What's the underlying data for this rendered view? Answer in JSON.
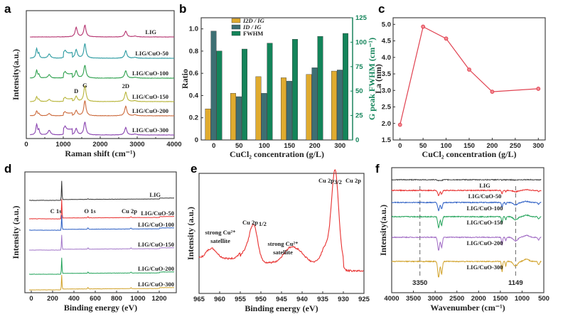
{
  "chart_data": [
    {
      "panel": "a",
      "type": "line",
      "xlabel": "Raman shift (cm⁻¹)",
      "ylabel": "Intensity(a.u.)",
      "xlim": [
        0,
        4000
      ],
      "xticks": [
        "0",
        "1000",
        "2000",
        "3000",
        "4000"
      ],
      "series": [
        {
          "name": "LIG",
          "color": "#b5336f",
          "peaks": [
            [
              1350,
              0.9
            ],
            [
              1585,
              1.1
            ],
            [
              2690,
              0.55
            ]
          ],
          "cuo": 0
        },
        {
          "name": "LIG/CuO-50",
          "color": "#2a9aa0",
          "peaks": [
            [
              1350,
              0.8
            ],
            [
              1585,
              1.35
            ],
            [
              2690,
              0.7
            ]
          ],
          "cuo": 1
        },
        {
          "name": "LIG/CuO-100",
          "color": "#2fa14f",
          "peaks": [
            [
              1350,
              0.7
            ],
            [
              1585,
              1.2
            ],
            [
              2690,
              0.7
            ]
          ],
          "cuo": 0.8
        },
        {
          "name": "LIG/CuO-150",
          "color": "#b8b53a",
          "peaks": [
            [
              1350,
              0.5
            ],
            [
              1585,
              1.5
            ],
            [
              2690,
              0.9
            ]
          ],
          "cuo": 0.5
        },
        {
          "name": "LIG/CuO-200",
          "color": "#cc6a3c",
          "peaks": [
            [
              1350,
              0.5
            ],
            [
              1585,
              1.4
            ],
            [
              2690,
              0.9
            ]
          ],
          "cuo": 0.5
        },
        {
          "name": "LIG/CuO-300",
          "color": "#8a44b0",
          "peaks": [
            [
              1350,
              0.6
            ],
            [
              1585,
              1.2
            ],
            [
              2690,
              0.7
            ]
          ],
          "cuo": 1.1
        }
      ],
      "annotations": [
        "D",
        "G",
        "2D"
      ]
    },
    {
      "panel": "b",
      "type": "bar",
      "xlabel": "CuCl₂ concentration (g/L)",
      "ylabel": "Ratio",
      "ylabel_right": "G peak FWHM (cm⁻¹)",
      "categories": [
        "0",
        "50",
        "100",
        "150",
        "200",
        "300"
      ],
      "ylim": [
        0,
        1.1
      ],
      "yticks": [
        "0",
        "0.2",
        "0.4",
        "0.6",
        "0.8",
        "1.0"
      ],
      "ylim_right": [
        0,
        125
      ],
      "yticks_right": [
        "0",
        "25",
        "50",
        "75",
        "100",
        "125"
      ],
      "series": [
        {
          "name": "I2D / IG",
          "color": "#e0ab2f",
          "axis": "left",
          "values": [
            0.28,
            0.42,
            0.57,
            0.56,
            0.59,
            0.62
          ]
        },
        {
          "name": "ID / IG",
          "color": "#3d6f73",
          "axis": "left",
          "values": [
            0.98,
            0.39,
            0.42,
            0.53,
            0.65,
            0.63
          ]
        },
        {
          "name": "FWHM",
          "color": "#13845a",
          "axis": "right",
          "values": [
            91,
            93,
            99,
            103,
            106,
            109
          ]
        }
      ],
      "legend_position": "top-left"
    },
    {
      "panel": "c",
      "type": "line",
      "xlabel": "CuCl₂ concentration (g/L)",
      "ylabel": "La (nm)",
      "x": [
        0,
        50,
        100,
        150,
        200,
        300
      ],
      "values": [
        1.96,
        4.93,
        4.57,
        3.63,
        2.96,
        3.05
      ],
      "xlim": [
        -15,
        315
      ],
      "xticks": [
        "0",
        "50",
        "100",
        "150",
        "200",
        "250",
        "300"
      ],
      "ylim": [
        1.5,
        5.2
      ],
      "yticks": [
        "1.5",
        "2.0",
        "2.5",
        "3.0",
        "3.5",
        "4.0",
        "4.5",
        "5.0"
      ],
      "color": "#e0404f"
    },
    {
      "panel": "d",
      "type": "line",
      "xlabel": "Binding energy (eV)",
      "ylabel": "Intensity (a.u.)",
      "xlim": [
        -60,
        1360
      ],
      "xticks": [
        "0",
        "200",
        "400",
        "600",
        "800",
        "1000",
        "1200"
      ],
      "series": [
        {
          "name": "LIG",
          "color": "#333333"
        },
        {
          "name": "LIG/CuO-50",
          "color": "#e8302f"
        },
        {
          "name": "LIG/CuO-100",
          "color": "#2d5fc4"
        },
        {
          "name": "LIG/CuO-150",
          "color": "#a377c9"
        },
        {
          "name": "LIG/CuO-200",
          "color": "#23a35a"
        },
        {
          "name": "LIG/CuO-300",
          "color": "#d1a22a"
        }
      ],
      "annotations": [
        "C 1s",
        "O 1s",
        "Cu 2p"
      ]
    },
    {
      "panel": "e",
      "type": "line",
      "xlabel": "Binding energy (eV)",
      "ylabel": "Intensity (a.u.)",
      "xlim": [
        965,
        925
      ],
      "xticks": [
        "965",
        "960",
        "955",
        "950",
        "945",
        "940",
        "935",
        "930",
        "925"
      ],
      "color": "#e8302f",
      "title": "Cu 2p",
      "annotations": [
        "Cu 2p3/2",
        "Cu 2p1/2",
        "strong Cu²⁺ satellite",
        "strong Cu²⁺ satellite"
      ],
      "peaks_eV": [
        932.0,
        951.8,
        943.0,
        962.0
      ]
    },
    {
      "panel": "f",
      "type": "line",
      "xlabel": "Wavenumber (cm⁻¹)",
      "ylabel": "Intensity(a.u.)",
      "xlim": [
        4000,
        500
      ],
      "xticks": [
        "4000",
        "3500",
        "3000",
        "2500",
        "2000",
        "1500",
        "1000",
        "500"
      ],
      "series": [
        {
          "name": "LIG",
          "color": "#444444",
          "depth": 0.1
        },
        {
          "name": "LIG/CuO-50",
          "color": "#e8302f",
          "depth": 0.5
        },
        {
          "name": "LIG/CuO-100",
          "color": "#2d5fc4",
          "depth": 0.8
        },
        {
          "name": "LIG/CuO-150",
          "color": "#23a35a",
          "depth": 1.1
        },
        {
          "name": "LIG/CuO-200",
          "color": "#a06ac4",
          "depth": 1.3
        },
        {
          "name": "LIG/CuO-300",
          "color": "#d1a22a",
          "depth": 1.6
        }
      ],
      "reference_lines": [
        "3350",
        "1149"
      ]
    }
  ],
  "panel_labels": [
    "a",
    "b",
    "c",
    "d",
    "e",
    "f"
  ]
}
